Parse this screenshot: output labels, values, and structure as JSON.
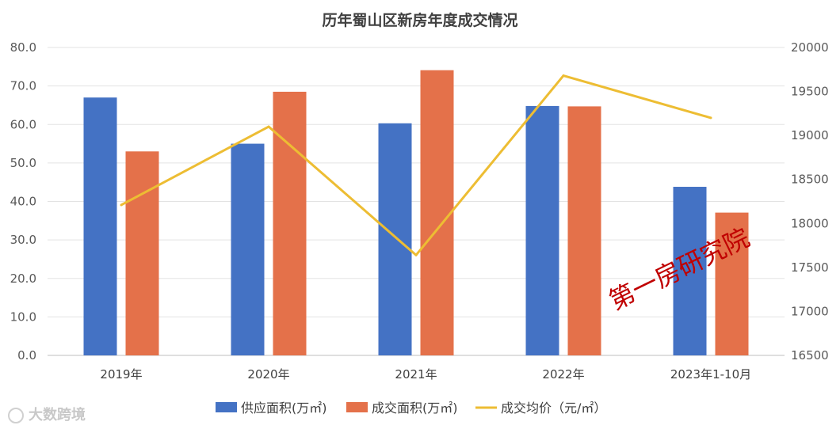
{
  "chart_data": {
    "type": "bar",
    "title": "历年蜀山区新房年度成交情况",
    "categories": [
      "2019年",
      "2020年",
      "2021年",
      "2022年",
      "2023年1-10月"
    ],
    "series": [
      {
        "name": "供应面积(万㎡)",
        "type": "bar",
        "axis": "left",
        "color": "#4472C4",
        "values": [
          67.0,
          55.0,
          60.3,
          64.8,
          43.8
        ]
      },
      {
        "name": "成交面积(万㎡)",
        "type": "bar",
        "axis": "left",
        "color": "#E4714A",
        "values": [
          53.0,
          68.5,
          74.1,
          64.7,
          37.1
        ]
      },
      {
        "name": "成交均价（元/㎡）",
        "type": "line",
        "axis": "right",
        "color": "#EDBD33",
        "values": [
          18210,
          19100,
          17640,
          19680,
          19200
        ]
      }
    ],
    "y_left": {
      "min": 0,
      "max": 80,
      "step": 10,
      "ticks": [
        "0.0",
        "10.0",
        "20.0",
        "30.0",
        "40.0",
        "50.0",
        "60.0",
        "70.0",
        "80.0"
      ]
    },
    "y_right": {
      "min": 16500,
      "max": 20000,
      "step": 500,
      "ticks": [
        "16500",
        "17000",
        "17500",
        "18000",
        "18500",
        "19000",
        "19500",
        "20000"
      ]
    },
    "legend_position": "bottom",
    "grid": true
  },
  "watermark": {
    "stamp_text": "第一房研究院",
    "logo_text": "大数跨境"
  }
}
